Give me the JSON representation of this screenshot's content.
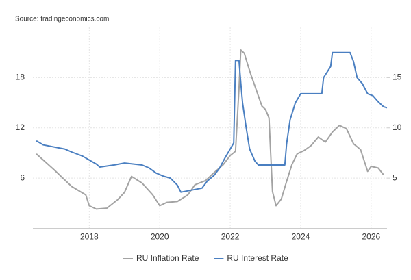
{
  "chart_data": {
    "type": "line",
    "source": "Source: tradingeconomics.com",
    "xlim": [
      2016.4,
      2026.45
    ],
    "xticks": [
      2018,
      2020,
      2022,
      2024,
      2026
    ],
    "ylim": [
      0,
      24
    ],
    "yticks": [
      6,
      12,
      18
    ],
    "y2lim": [
      0,
      20
    ],
    "y2ticks": [
      5,
      10,
      15
    ],
    "grid": true,
    "legend": "bottom",
    "series": [
      {
        "name": "RU Inflation Rate",
        "color": "#a3a3a3",
        "x": [
          2016.5,
          2017.0,
          2017.5,
          2017.9,
          2018.0,
          2018.2,
          2018.5,
          2018.8,
          2019.0,
          2019.2,
          2019.5,
          2019.8,
          2020.0,
          2020.2,
          2020.5,
          2020.8,
          2021.0,
          2021.3,
          2021.5,
          2021.8,
          2022.0,
          2022.15,
          2022.25,
          2022.3,
          2022.4,
          2022.5,
          2022.6,
          2022.7,
          2022.8,
          2022.9,
          2023.0,
          2023.1,
          2023.2,
          2023.3,
          2023.45,
          2023.6,
          2023.75,
          2023.9,
          2024.1,
          2024.3,
          2024.5,
          2024.7,
          2024.9,
          2025.1,
          2025.3,
          2025.5,
          2025.7,
          2025.9,
          2026.0,
          2026.2,
          2026.35
        ],
        "values": [
          8.9,
          7.0,
          5.0,
          4.0,
          2.7,
          2.3,
          2.4,
          3.4,
          4.3,
          6.2,
          5.4,
          4.0,
          2.7,
          3.1,
          3.2,
          4.0,
          5.2,
          5.7,
          6.5,
          7.6,
          8.7,
          9.2,
          16.7,
          21.3,
          20.9,
          19.5,
          18.2,
          17.0,
          15.8,
          14.6,
          14.2,
          13.2,
          4.4,
          2.7,
          3.5,
          5.6,
          7.6,
          8.9,
          9.3,
          9.9,
          10.9,
          10.3,
          11.5,
          12.3,
          11.9,
          10.1,
          9.4,
          6.8,
          7.4,
          7.2,
          6.4
        ]
      },
      {
        "name": "RU Interest Rate",
        "color": "#4a7fc1",
        "axis": "y2",
        "x": [
          2016.5,
          2016.7,
          2017.3,
          2017.5,
          2017.8,
          2018.0,
          2018.2,
          2018.3,
          2018.7,
          2019.0,
          2019.5,
          2019.7,
          2019.9,
          2020.1,
          2020.3,
          2020.5,
          2020.6,
          2021.2,
          2021.35,
          2021.55,
          2021.7,
          2021.85,
          2022.0,
          2022.1,
          2022.15,
          2022.25,
          2022.3,
          2022.35,
          2022.45,
          2022.55,
          2022.7,
          2022.8,
          2023.55,
          2023.6,
          2023.7,
          2023.85,
          2024.0,
          2024.6,
          2024.65,
          2024.85,
          2024.9,
          2025.4,
          2025.5,
          2025.6,
          2025.75,
          2025.9,
          2026.05,
          2026.2,
          2026.35,
          2026.45
        ],
        "values": [
          8.7,
          8.3,
          7.9,
          7.6,
          7.2,
          6.8,
          6.4,
          6.1,
          6.3,
          6.5,
          6.3,
          6.0,
          5.5,
          5.2,
          5.0,
          4.3,
          3.6,
          4.0,
          4.7,
          5.3,
          6.0,
          7.0,
          7.9,
          8.5,
          16.7,
          16.7,
          14.5,
          12.5,
          10.1,
          7.9,
          6.7,
          6.3,
          6.3,
          8.4,
          10.8,
          12.5,
          13.4,
          13.4,
          15.0,
          16.1,
          17.5,
          17.5,
          16.6,
          15.0,
          14.4,
          13.4,
          13.2,
          12.6,
          12.1,
          12.0
        ]
      }
    ]
  }
}
